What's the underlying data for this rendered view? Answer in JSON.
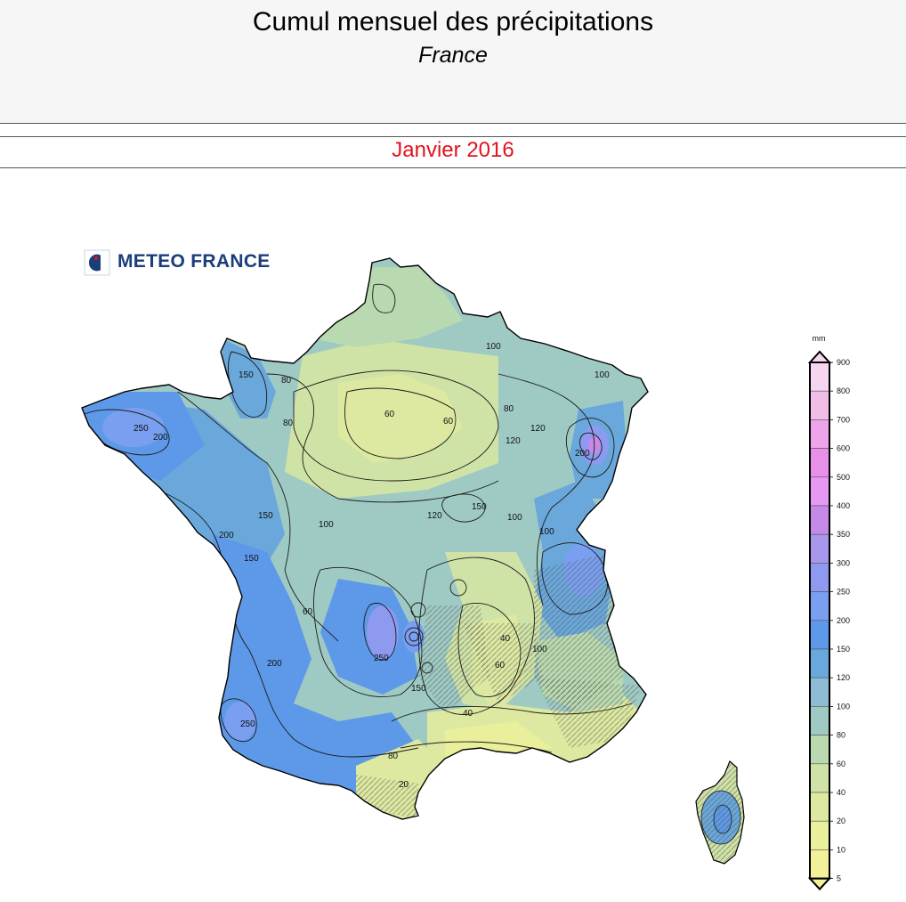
{
  "header": {
    "title": "Cumul mensuel des précipitations",
    "subtitle": "France"
  },
  "period": {
    "label": "Janvier 2016",
    "color": "#e0141c"
  },
  "logo": {
    "text": "METEO FRANCE"
  },
  "legend": {
    "unit": "mm",
    "levels": [
      "900",
      "800",
      "700",
      "600",
      "500",
      "400",
      "350",
      "300",
      "250",
      "200",
      "150",
      "120",
      "100",
      "80",
      "60",
      "40",
      "20",
      "10",
      "5"
    ],
    "colors": [
      "#f6d6ee",
      "#f0bde8",
      "#eea4ea",
      "#e88fea",
      "#e698f2",
      "#c58ae8",
      "#a895ec",
      "#8e99f0",
      "#7a9ef0",
      "#5d99e8",
      "#6aa8dc",
      "#8dbcd4",
      "#9fcac4",
      "#b9dab0",
      "#cfe3a6",
      "#dde9a0",
      "#e9ef9b",
      "#f2f19a"
    ]
  },
  "contour_labels": [
    "250",
    "200",
    "150",
    "100",
    "80",
    "60",
    "200",
    "150",
    "100",
    "120",
    "150",
    "120",
    "100",
    "80",
    "60",
    "100",
    "200",
    "250",
    "200",
    "250",
    "150",
    "100",
    "80",
    "60",
    "40",
    "20",
    "100",
    "40",
    "60",
    "150",
    "120",
    "80"
  ]
}
